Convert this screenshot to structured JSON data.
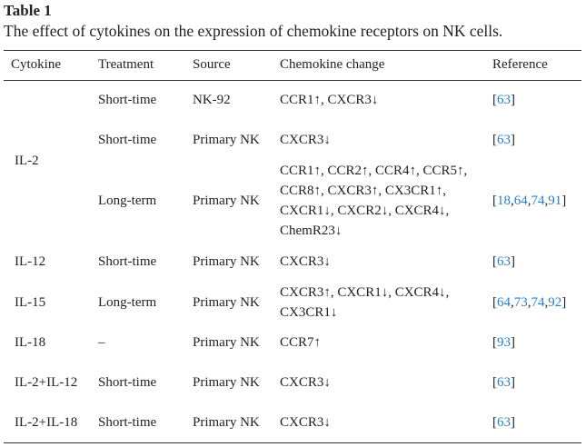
{
  "table_title": "Table 1",
  "caption": "The effect of cytokines on the expression of chemokine receptors on NK cells.",
  "table": {
    "header": [
      "Cytokine",
      "Treatment",
      "Source",
      "Chemokine change",
      "Reference"
    ],
    "groups": [
      {
        "cytokine": "IL-2",
        "rows": [
          {
            "treatment": "Short-time",
            "source": "NK-92",
            "change": "CCR1↑, CXCR3↓",
            "reference": [
              "[",
              "63",
              "]"
            ]
          },
          {
            "treatment": "Short-time",
            "source": "Primary NK",
            "change": "CXCR3↓",
            "reference": [
              "[",
              "63",
              "]"
            ]
          },
          {
            "treatment": "Long-term",
            "source": "Primary NK",
            "change": "CCR1↑, CCR2↑, CCR4↑, CCR5↑, CCR8↑, CXCR3↑, CX3CR1↑, CXCR1↓, CXCR2↓, CXCR4↓, ChemR23↓",
            "reference": [
              "[",
              "18",
              ",",
              "64",
              ",",
              "74",
              ",",
              "91",
              "]"
            ]
          }
        ]
      },
      {
        "cytokine": "IL-12",
        "rows": [
          {
            "treatment": "Short-time",
            "source": "Primary NK",
            "change": "CXCR3↓",
            "reference": [
              "[",
              "63",
              "]"
            ]
          }
        ]
      },
      {
        "cytokine": "IL-15",
        "rows": [
          {
            "treatment": "Long-term",
            "source": "Primary NK",
            "change": "CXCR3↑, CXCR1↓, CXCR4↓, CX3CR1↓",
            "reference": [
              "[",
              "64",
              ",",
              "73",
              ",",
              "74",
              ",",
              "92",
              "]"
            ]
          }
        ]
      },
      {
        "cytokine": "IL-18",
        "rows": [
          {
            "treatment": "–",
            "source": "Primary NK",
            "change": "CCR7↑",
            "reference": [
              "[",
              "93",
              "]"
            ]
          }
        ]
      },
      {
        "cytokine": "IL-2+IL-12",
        "rows": [
          {
            "treatment": "Short-time",
            "source": "Primary NK",
            "change": "CXCR3↓",
            "reference": [
              "[",
              "63",
              "]"
            ]
          }
        ]
      },
      {
        "cytokine": "IL-2+IL-18",
        "rows": [
          {
            "treatment": "Short-time",
            "source": "Primary NK",
            "change": "CXCR3↓",
            "reference": [
              "[",
              "63",
              "]"
            ]
          }
        ]
      }
    ]
  }
}
